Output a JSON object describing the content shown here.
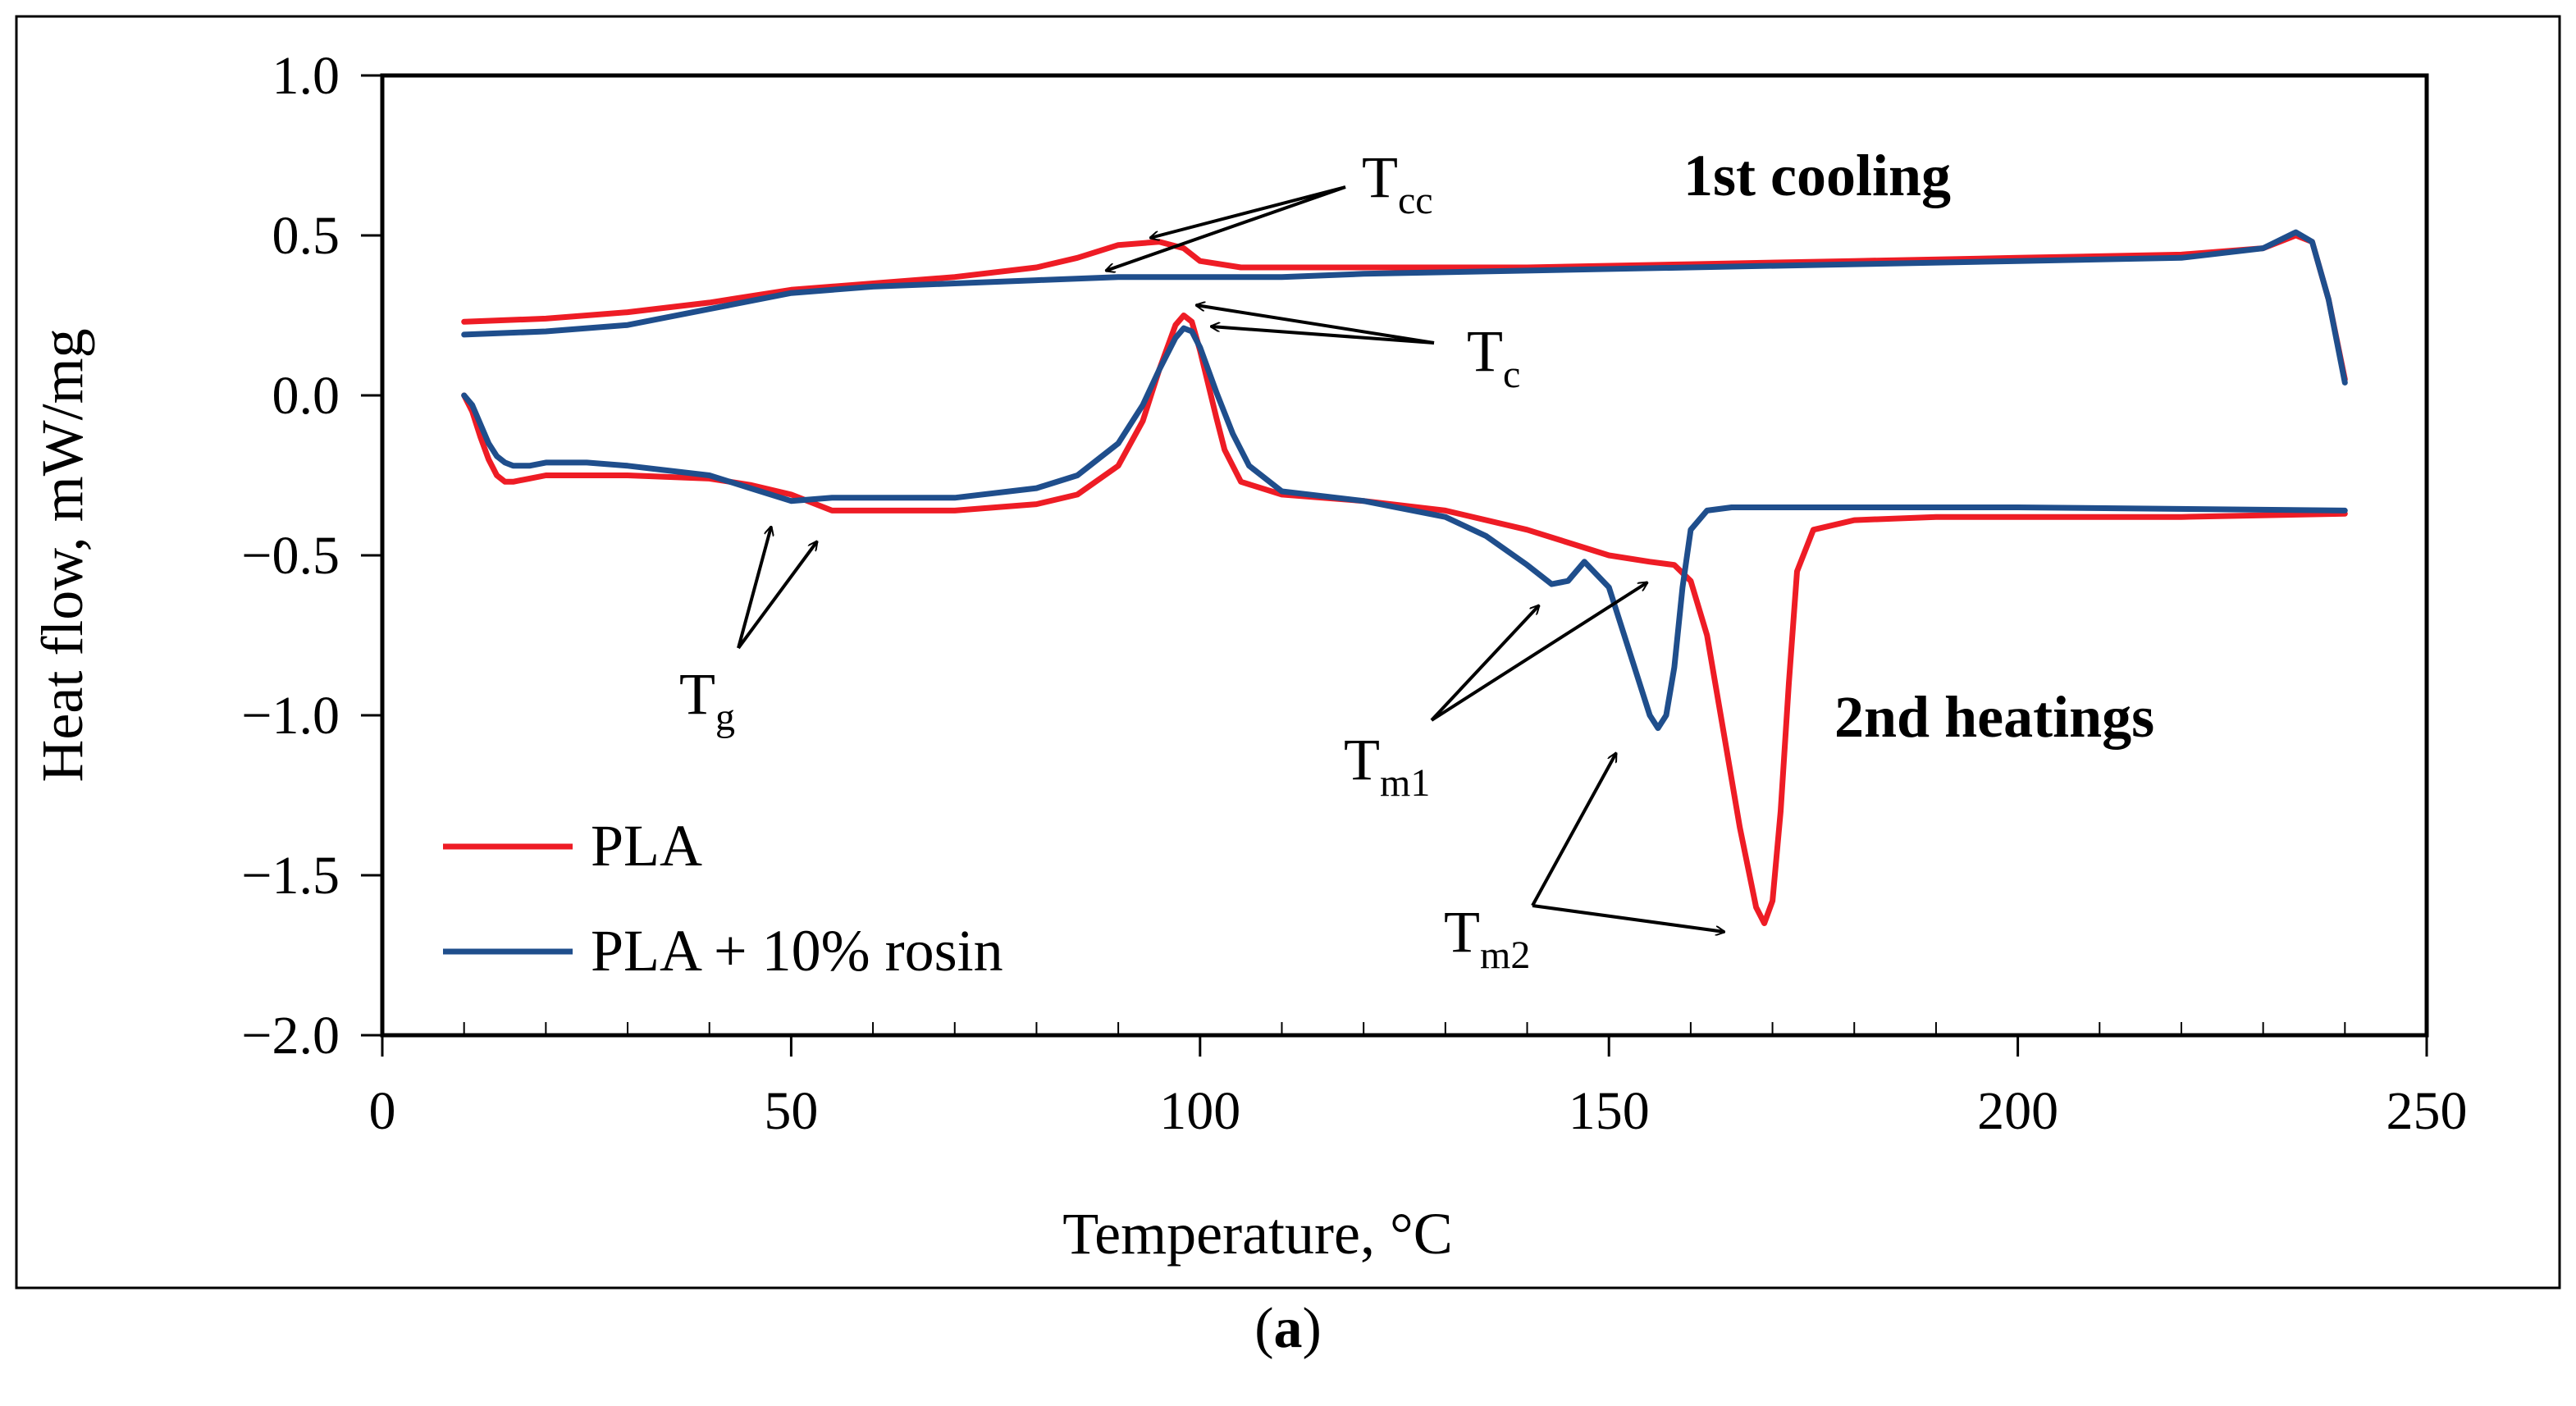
{
  "chart_data": {
    "type": "line",
    "xlabel": "Temperature, °C",
    "ylabel": "Heat flow, mW/mg",
    "xlim": [
      0,
      250
    ],
    "ylim": [
      -2.0,
      1.0
    ],
    "x_ticks": [
      "0",
      "50",
      "100",
      "150",
      "200",
      "250"
    ],
    "y_ticks": [
      "1.0",
      "0.5",
      "0.0",
      "−0.5",
      "−1.0",
      "−1.5",
      "−2.0"
    ],
    "legend_position": "bottom-left",
    "series": [
      {
        "name": "PLA",
        "color": "#ee1c25",
        "curves": [
          {
            "segment": "1st cooling",
            "x": [
              10,
              20,
              30,
              40,
              50,
              60,
              70,
              80,
              85,
              90,
              95,
              98,
              100,
              105,
              110,
              120,
              140,
              160,
              180,
              200,
              220,
              230,
              234,
              236,
              238,
              240
            ],
            "y": [
              0.23,
              0.24,
              0.26,
              0.29,
              0.33,
              0.35,
              0.37,
              0.4,
              0.43,
              0.47,
              0.48,
              0.46,
              0.42,
              0.4,
              0.4,
              0.4,
              0.4,
              0.41,
              0.42,
              0.43,
              0.44,
              0.46,
              0.5,
              0.48,
              0.3,
              0.05
            ]
          },
          {
            "segment": "2nd heatings",
            "x": [
              10,
              11,
              12,
              13,
              14,
              15,
              16,
              18,
              20,
              25,
              30,
              40,
              45,
              50,
              55,
              60,
              70,
              80,
              85,
              90,
              93,
              95,
              97,
              98,
              99,
              100,
              102,
              103,
              105,
              110,
              120,
              130,
              140,
              150,
              155,
              158,
              160,
              162,
              164,
              166,
              168,
              169,
              170,
              171,
              172,
              173,
              175,
              180,
              190,
              200,
              220,
              240
            ],
            "y": [
              0.0,
              -0.05,
              -0.13,
              -0.2,
              -0.25,
              -0.27,
              -0.27,
              -0.26,
              -0.25,
              -0.25,
              -0.25,
              -0.26,
              -0.28,
              -0.31,
              -0.36,
              -0.36,
              -0.36,
              -0.34,
              -0.31,
              -0.22,
              -0.08,
              0.08,
              0.22,
              0.25,
              0.23,
              0.14,
              -0.07,
              -0.17,
              -0.27,
              -0.31,
              -0.33,
              -0.36,
              -0.42,
              -0.5,
              -0.52,
              -0.53,
              -0.58,
              -0.75,
              -1.05,
              -1.35,
              -1.6,
              -1.65,
              -1.58,
              -1.3,
              -0.9,
              -0.55,
              -0.42,
              -0.39,
              -0.38,
              -0.38,
              -0.38,
              -0.37
            ]
          }
        ]
      },
      {
        "name": "PLA + 10% rosin",
        "color": "#1f4e8c",
        "curves": [
          {
            "segment": "1st cooling",
            "x": [
              10,
              20,
              30,
              40,
              50,
              60,
              70,
              80,
              90,
              100,
              110,
              120,
              140,
              160,
              180,
              200,
              220,
              230,
              234,
              236,
              238,
              240
            ],
            "y": [
              0.19,
              0.2,
              0.22,
              0.27,
              0.32,
              0.34,
              0.35,
              0.36,
              0.37,
              0.37,
              0.37,
              0.38,
              0.39,
              0.4,
              0.41,
              0.42,
              0.43,
              0.46,
              0.51,
              0.48,
              0.3,
              0.04
            ]
          },
          {
            "segment": "2nd heatings",
            "x": [
              10,
              11,
              12,
              13,
              14,
              15,
              16,
              18,
              20,
              25,
              30,
              40,
              45,
              50,
              55,
              60,
              70,
              80,
              85,
              90,
              93,
              95,
              97,
              98,
              99,
              100,
              102,
              104,
              106,
              110,
              120,
              130,
              135,
              140,
              143,
              145,
              147,
              150,
              153,
              155,
              156,
              157,
              158,
              159,
              160,
              162,
              165,
              170,
              200,
              240
            ],
            "y": [
              0.0,
              -0.03,
              -0.09,
              -0.15,
              -0.19,
              -0.21,
              -0.22,
              -0.22,
              -0.21,
              -0.21,
              -0.22,
              -0.25,
              -0.29,
              -0.33,
              -0.32,
              -0.32,
              -0.32,
              -0.29,
              -0.25,
              -0.15,
              -0.03,
              0.08,
              0.18,
              0.21,
              0.2,
              0.15,
              0.01,
              -0.12,
              -0.22,
              -0.3,
              -0.33,
              -0.38,
              -0.44,
              -0.53,
              -0.59,
              -0.58,
              -0.52,
              -0.6,
              -0.84,
              -1.0,
              -1.04,
              -1.0,
              -0.85,
              -0.6,
              -0.42,
              -0.36,
              -0.35,
              -0.35,
              -0.35,
              -0.36
            ]
          }
        ]
      }
    ],
    "annotations": {
      "tcc": {
        "main": "T",
        "sub": "cc"
      },
      "tc": {
        "main": "T",
        "sub": "c"
      },
      "tg": {
        "main": "T",
        "sub": "g"
      },
      "tm1": {
        "main": "T",
        "sub": "m1"
      },
      "tm2": {
        "main": "T",
        "sub": "m2"
      },
      "cooling": "1st cooling",
      "heatings": "2nd heatings"
    }
  },
  "caption": {
    "open": "(",
    "letter": "a",
    "close": ")"
  }
}
